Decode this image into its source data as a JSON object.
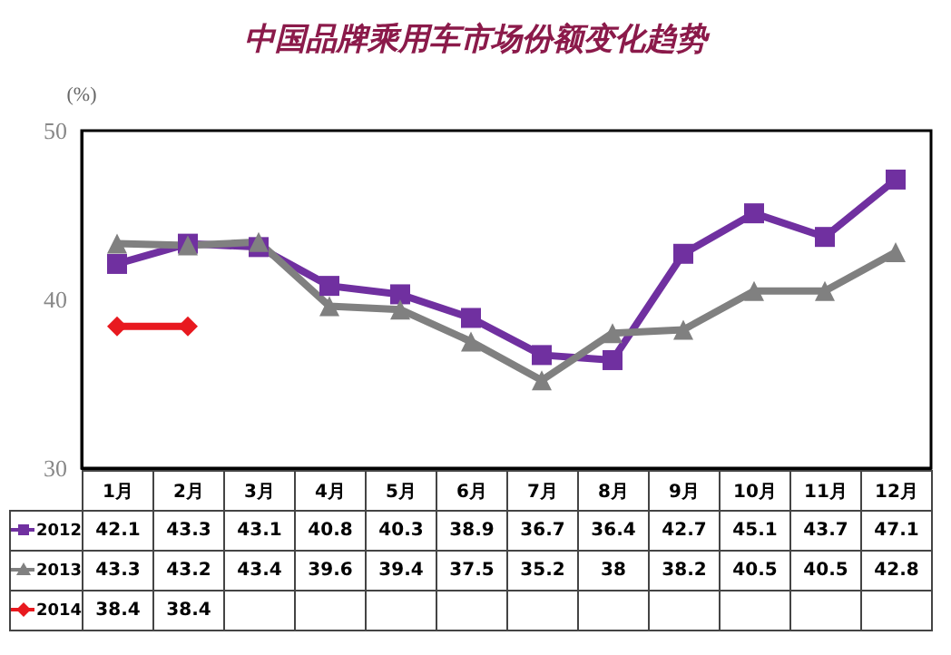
{
  "chart_data": {
    "type": "line",
    "title": "中国品牌乘用车市场份额变化趋势",
    "ylabel": "(%)",
    "categories": [
      "1月",
      "2月",
      "3月",
      "4月",
      "5月",
      "6月",
      "7月",
      "8月",
      "9月",
      "10月",
      "11月",
      "12月"
    ],
    "series": [
      {
        "name": "2012",
        "color": "#7030a0",
        "marker": "square",
        "values": [
          42.1,
          43.3,
          43.1,
          40.8,
          40.3,
          38.9,
          36.7,
          36.4,
          42.7,
          45.1,
          43.7,
          47.1
        ]
      },
      {
        "name": "2013",
        "color": "#808080",
        "marker": "triangle",
        "values": [
          43.3,
          43.2,
          43.4,
          39.6,
          39.4,
          37.5,
          35.2,
          38,
          38.2,
          40.5,
          40.5,
          42.8
        ]
      },
      {
        "name": "2014",
        "color": "#e8191f",
        "marker": "diamond",
        "values": [
          38.4,
          38.4,
          null,
          null,
          null,
          null,
          null,
          null,
          null,
          null,
          null,
          null
        ]
      }
    ],
    "ylim": [
      30,
      50
    ],
    "yticks": [
      30,
      40,
      50
    ],
    "grid": false,
    "legend": "bottom left",
    "data_labels": true
  }
}
